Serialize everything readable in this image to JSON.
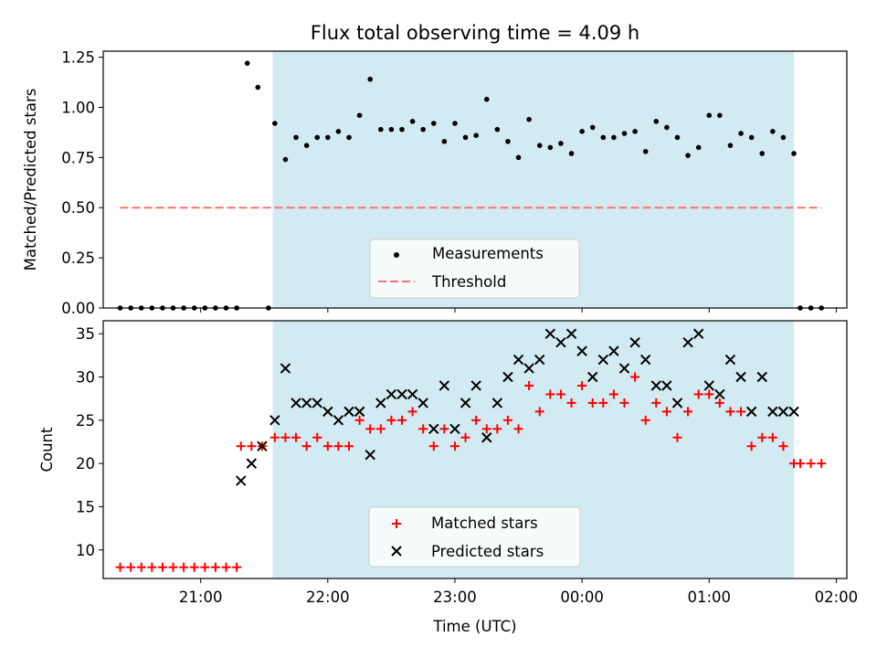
{
  "title": "Flux total observing time = 4.09 h",
  "colors": {
    "measurement": "#000000",
    "threshold": "#ff7070",
    "matched": "#ff0000",
    "predicted": "#000000",
    "observing_span": "#add8e6"
  },
  "chart_data": [
    {
      "type": "scatter",
      "panel": "top",
      "ylabel": "Matched/Predicted stars",
      "xlim": [
        "20:14",
        "02:05"
      ],
      "ylim": [
        0,
        1.28
      ],
      "yticks": [
        0.0,
        0.25,
        0.5,
        0.75,
        1.0,
        1.25
      ],
      "ytick_labels": [
        "0.00",
        "0.25",
        "0.50",
        "0.75",
        "1.00",
        "1.25"
      ],
      "observing_span": [
        "21:34",
        "01:40"
      ],
      "threshold": {
        "value": 0.5,
        "x_range": [
          "20:22",
          "01:53"
        ]
      },
      "legend_position": "lower center",
      "legend": {
        "measurements": "Measurements",
        "threshold": "Threshold"
      },
      "series": [
        {
          "name": "Measurements",
          "x": [
            "20:22",
            "20:27",
            "20:32",
            "20:37",
            "20:42",
            "20:47",
            "20:52",
            "20:57",
            "21:02",
            "21:07",
            "21:12",
            "21:17",
            "21:22",
            "21:27",
            "21:32",
            "21:35",
            "21:40",
            "21:45",
            "21:50",
            "21:55",
            "22:00",
            "22:05",
            "22:10",
            "22:15",
            "22:20",
            "22:25",
            "22:30",
            "22:35",
            "22:40",
            "22:45",
            "22:50",
            "22:55",
            "23:00",
            "23:05",
            "23:10",
            "23:15",
            "23:20",
            "23:25",
            "23:30",
            "23:35",
            "23:40",
            "23:45",
            "23:50",
            "23:55",
            "00:00",
            "00:05",
            "00:10",
            "00:15",
            "00:20",
            "00:25",
            "00:30",
            "00:35",
            "00:40",
            "00:45",
            "00:50",
            "00:55",
            "01:00",
            "01:05",
            "01:10",
            "01:15",
            "01:20",
            "01:25",
            "01:30",
            "01:35",
            "01:40",
            "01:43",
            "01:48",
            "01:53"
          ],
          "y": [
            0,
            0,
            0,
            0,
            0,
            0,
            0,
            0,
            0,
            0,
            0,
            0,
            1.22,
            1.1,
            0,
            0.92,
            0.74,
            0.85,
            0.81,
            0.85,
            0.85,
            0.88,
            0.85,
            0.96,
            1.14,
            0.89,
            0.89,
            0.89,
            0.93,
            0.89,
            0.92,
            0.83,
            0.92,
            0.85,
            0.86,
            1.04,
            0.89,
            0.83,
            0.75,
            0.94,
            0.81,
            0.8,
            0.82,
            0.77,
            0.88,
            0.9,
            0.85,
            0.85,
            0.87,
            0.88,
            0.78,
            0.93,
            0.9,
            0.85,
            0.76,
            0.8,
            0.96,
            0.96,
            0.81,
            0.87,
            0.85,
            0.77,
            0.88,
            0.85,
            0.77,
            0,
            0,
            0
          ]
        }
      ]
    },
    {
      "type": "scatter",
      "panel": "bottom",
      "xlabel": "Time (UTC)",
      "ylabel": "Count",
      "xlim": [
        "20:14",
        "02:05"
      ],
      "ylim": [
        6.7,
        36.5
      ],
      "yticks": [
        10,
        15,
        20,
        25,
        30,
        35
      ],
      "ytick_labels": [
        "10",
        "15",
        "20",
        "25",
        "30",
        "35"
      ],
      "xticks": [
        "21:00",
        "22:00",
        "23:00",
        "00:00",
        "01:00",
        "02:00"
      ],
      "observing_span": [
        "21:34",
        "01:40"
      ],
      "legend_position": "lower center",
      "legend": {
        "matched": "Matched stars",
        "predicted": "Predicted stars"
      },
      "series": [
        {
          "name": "Matched stars",
          "x": [
            "20:22",
            "20:27",
            "20:32",
            "20:37",
            "20:42",
            "20:47",
            "20:52",
            "20:57",
            "21:02",
            "21:07",
            "21:12",
            "21:17",
            "21:19",
            "21:24",
            "21:29",
            "21:35",
            "21:40",
            "21:45",
            "21:50",
            "21:55",
            "22:00",
            "22:05",
            "22:10",
            "22:15",
            "22:20",
            "22:25",
            "22:30",
            "22:35",
            "22:40",
            "22:45",
            "22:50",
            "22:55",
            "23:00",
            "23:05",
            "23:10",
            "23:15",
            "23:20",
            "23:25",
            "23:30",
            "23:35",
            "23:40",
            "23:45",
            "23:50",
            "23:55",
            "00:00",
            "00:05",
            "00:10",
            "00:15",
            "00:20",
            "00:25",
            "00:30",
            "00:35",
            "00:40",
            "00:45",
            "00:50",
            "00:55",
            "01:00",
            "01:05",
            "01:10",
            "01:15",
            "01:20",
            "01:25",
            "01:30",
            "01:35",
            "01:40",
            "01:43",
            "01:48",
            "01:53"
          ],
          "y": [
            8,
            8,
            8,
            8,
            8,
            8,
            8,
            8,
            8,
            8,
            8,
            8,
            22,
            22,
            22,
            23,
            23,
            23,
            22,
            23,
            22,
            22,
            22,
            25,
            24,
            24,
            25,
            25,
            26,
            24,
            22,
            24,
            22,
            23,
            25,
            24,
            24,
            25,
            24,
            29,
            26,
            28,
            28,
            27,
            29,
            27,
            27,
            28,
            27,
            30,
            25,
            27,
            26,
            23,
            26,
            28,
            28,
            27,
            26,
            26,
            22,
            23,
            23,
            22,
            20,
            20,
            20,
            20
          ]
        },
        {
          "name": "Predicted stars",
          "x": [
            "21:19",
            "21:24",
            "21:29",
            "21:35",
            "21:40",
            "21:45",
            "21:50",
            "21:55",
            "22:00",
            "22:05",
            "22:10",
            "22:15",
            "22:20",
            "22:25",
            "22:30",
            "22:35",
            "22:40",
            "22:45",
            "22:50",
            "22:55",
            "23:00",
            "23:05",
            "23:10",
            "23:15",
            "23:20",
            "23:25",
            "23:30",
            "23:35",
            "23:40",
            "23:45",
            "23:50",
            "23:55",
            "00:00",
            "00:05",
            "00:10",
            "00:15",
            "00:20",
            "00:25",
            "00:30",
            "00:35",
            "00:40",
            "00:45",
            "00:50",
            "00:55",
            "01:00",
            "01:05",
            "01:10",
            "01:15",
            "01:20",
            "01:25",
            "01:30",
            "01:35",
            "01:40"
          ],
          "y": [
            18,
            20,
            22,
            25,
            31,
            27,
            27,
            27,
            26,
            25,
            26,
            26,
            21,
            27,
            28,
            28,
            28,
            27,
            24,
            29,
            24,
            27,
            29,
            23,
            27,
            30,
            32,
            31,
            32,
            35,
            34,
            35,
            33,
            30,
            32,
            33,
            31,
            34,
            32,
            29,
            29,
            27,
            34,
            35,
            29,
            28,
            32,
            30,
            26,
            30,
            26,
            26,
            26
          ]
        }
      ]
    }
  ]
}
